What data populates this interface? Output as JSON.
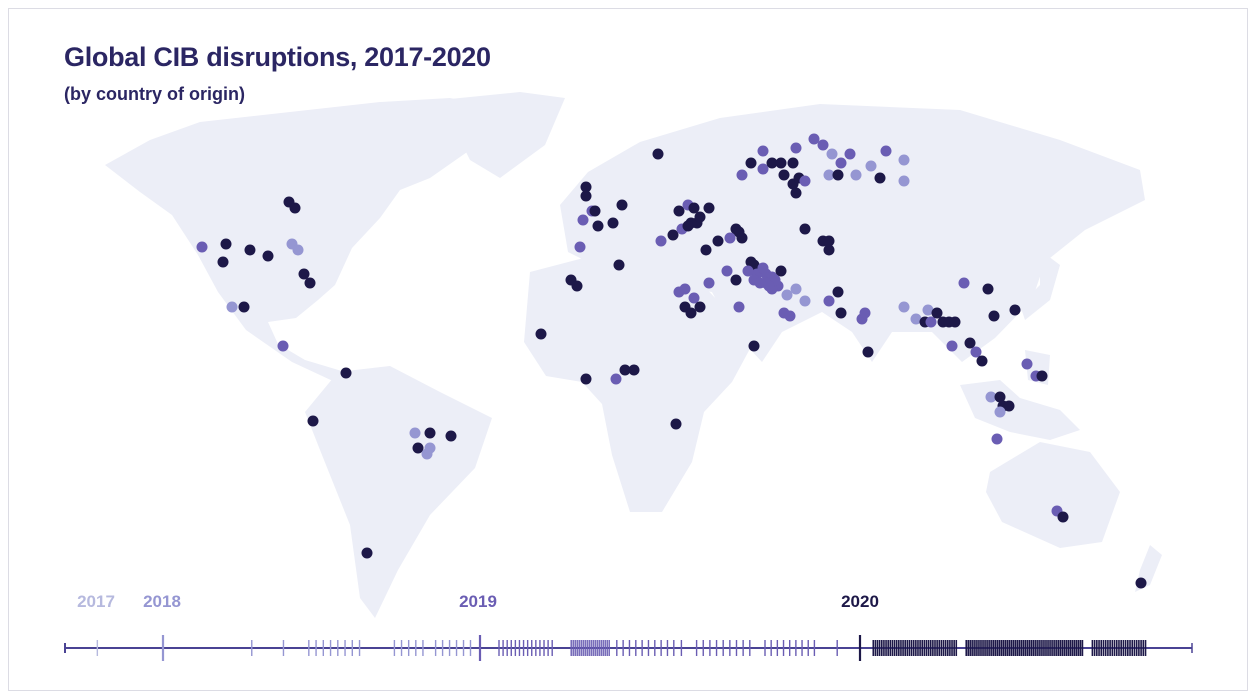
{
  "title": "Global CIB disruptions, 2017-2020",
  "subtitle": "(by country of origin)",
  "colors": {
    "2017": "#b6b9de",
    "2018": "#9596d2",
    "2019": "#6a5db3",
    "2020": "#1d1848",
    "land": "#eceef7",
    "axis": "#4a4394"
  },
  "year_labels": [
    "2017",
    "2018",
    "2019",
    "2020"
  ],
  "chart_data": {
    "type": "scatter",
    "title": "Global CIB disruptions, 2017-2020",
    "subtitle": "(by country of origin)",
    "dots_format": [
      "lon",
      "lat",
      "year"
    ],
    "dots": [
      [
        -136,
        51,
        2019
      ],
      [
        -128,
        52,
        2020
      ],
      [
        -129,
        46,
        2020
      ],
      [
        -120,
        50,
        2020
      ],
      [
        -114,
        48,
        2020
      ],
      [
        -106,
        52,
        2018
      ],
      [
        -104,
        50,
        2018
      ],
      [
        -107,
        66,
        2020
      ],
      [
        -105,
        64,
        2020
      ],
      [
        -102,
        42,
        2020
      ],
      [
        -100,
        39,
        2020
      ],
      [
        -126,
        31,
        2018
      ],
      [
        -122,
        31,
        2020
      ],
      [
        -109,
        18,
        2019
      ],
      [
        -88,
        9,
        2020
      ],
      [
        -99,
        -7,
        2020
      ],
      [
        -65,
        -11,
        2018
      ],
      [
        -60,
        -11,
        2020
      ],
      [
        -53,
        -12,
        2020
      ],
      [
        -64,
        -16,
        2020
      ],
      [
        -61,
        -18,
        2018
      ],
      [
        -60,
        -16,
        2018
      ],
      [
        -81,
        -51,
        2020
      ],
      [
        -23,
        22,
        2020
      ],
      [
        -8,
        7,
        2020
      ],
      [
        2,
        7,
        2019
      ],
      [
        5,
        10,
        2020
      ],
      [
        8,
        10,
        2020
      ],
      [
        22,
        -8,
        2020
      ],
      [
        -8,
        71,
        2020
      ],
      [
        -8,
        68,
        2020
      ],
      [
        -6,
        63,
        2019
      ],
      [
        -9,
        60,
        2019
      ],
      [
        -4,
        58,
        2020
      ],
      [
        -5,
        63,
        2020
      ],
      [
        1,
        59,
        2020
      ],
      [
        4,
        65,
        2020
      ],
      [
        -10,
        51,
        2019
      ],
      [
        -13,
        40,
        2020
      ],
      [
        -11,
        38,
        2020
      ],
      [
        3,
        45,
        2020
      ],
      [
        16,
        82,
        2020
      ],
      [
        17,
        53,
        2019
      ],
      [
        21,
        55,
        2020
      ],
      [
        23,
        63,
        2020
      ],
      [
        26,
        65,
        2019
      ],
      [
        28,
        64,
        2020
      ],
      [
        33,
        64,
        2020
      ],
      [
        27,
        59,
        2020
      ],
      [
        29,
        59,
        2020
      ],
      [
        30,
        61,
        2020
      ],
      [
        24,
        57,
        2019
      ],
      [
        26,
        58,
        2020
      ],
      [
        42,
        57,
        2020
      ],
      [
        43,
        56,
        2020
      ],
      [
        44,
        54,
        2020
      ],
      [
        40,
        54,
        2019
      ],
      [
        32,
        50,
        2020
      ],
      [
        36,
        53,
        2020
      ],
      [
        44,
        75,
        2019
      ],
      [
        47,
        79,
        2020
      ],
      [
        51,
        83,
        2019
      ],
      [
        51,
        77,
        2019
      ],
      [
        54,
        79,
        2020
      ],
      [
        57,
        79,
        2020
      ],
      [
        61,
        79,
        2020
      ],
      [
        58,
        75,
        2020
      ],
      [
        61,
        72,
        2020
      ],
      [
        62,
        69,
        2020
      ],
      [
        63,
        74,
        2020
      ],
      [
        65,
        73,
        2019
      ],
      [
        62,
        84,
        2019
      ],
      [
        68,
        87,
        2019
      ],
      [
        71,
        85,
        2019
      ],
      [
        74,
        82,
        2018
      ],
      [
        73,
        75,
        2018
      ],
      [
        76,
        75,
        2020
      ],
      [
        77,
        79,
        2019
      ],
      [
        80,
        82,
        2019
      ],
      [
        82,
        75,
        2018
      ],
      [
        87,
        78,
        2018
      ],
      [
        90,
        74,
        2020
      ],
      [
        92,
        83,
        2019
      ],
      [
        98,
        80,
        2018
      ],
      [
        98,
        73,
        2018
      ],
      [
        65,
        57,
        2020
      ],
      [
        71,
        53,
        2020
      ],
      [
        73,
        53,
        2020
      ],
      [
        73,
        50,
        2020
      ],
      [
        39,
        43,
        2019
      ],
      [
        42,
        40,
        2020
      ],
      [
        48,
        45,
        2020
      ],
      [
        47,
        46,
        2020
      ],
      [
        49,
        42,
        2019
      ],
      [
        52,
        42,
        2019
      ],
      [
        54,
        41,
        2019
      ],
      [
        57,
        43,
        2020
      ],
      [
        56,
        38,
        2019
      ],
      [
        54,
        37,
        2019
      ],
      [
        55,
        40,
        2019
      ],
      [
        46,
        43,
        2019
      ],
      [
        48,
        40,
        2019
      ],
      [
        50,
        39,
        2019
      ],
      [
        52,
        39,
        2019
      ],
      [
        51,
        44,
        2019
      ],
      [
        53,
        38,
        2019
      ],
      [
        33,
        39,
        2019
      ],
      [
        23,
        36,
        2019
      ],
      [
        25,
        37,
        2019
      ],
      [
        28,
        34,
        2019
      ],
      [
        25,
        31,
        2020
      ],
      [
        27,
        29,
        2020
      ],
      [
        30,
        31,
        2020
      ],
      [
        43,
        31,
        2019
      ],
      [
        59,
        35,
        2018
      ],
      [
        62,
        37,
        2018
      ],
      [
        65,
        33,
        2018
      ],
      [
        58,
        29,
        2019
      ],
      [
        60,
        28,
        2019
      ],
      [
        73,
        33,
        2019
      ],
      [
        76,
        36,
        2020
      ],
      [
        77,
        29,
        2020
      ],
      [
        84,
        27,
        2019
      ],
      [
        85,
        29,
        2019
      ],
      [
        48,
        18,
        2020
      ],
      [
        86,
        16,
        2020
      ],
      [
        98,
        31,
        2018
      ],
      [
        102,
        27,
        2018
      ],
      [
        106,
        30,
        2018
      ],
      [
        105,
        26,
        2020
      ],
      [
        107,
        26,
        2019
      ],
      [
        109,
        29,
        2020
      ],
      [
        111,
        26,
        2020
      ],
      [
        113,
        26,
        2020
      ],
      [
        115,
        26,
        2020
      ],
      [
        118,
        39,
        2019
      ],
      [
        126,
        37,
        2020
      ],
      [
        128,
        28,
        2020
      ],
      [
        135,
        30,
        2020
      ],
      [
        114,
        18,
        2019
      ],
      [
        120,
        19,
        2020
      ],
      [
        122,
        16,
        2019
      ],
      [
        124,
        13,
        2020
      ],
      [
        139,
        12,
        2019
      ],
      [
        142,
        8,
        2019
      ],
      [
        144,
        8,
        2020
      ],
      [
        127,
        1,
        2018
      ],
      [
        130,
        1,
        2020
      ],
      [
        131,
        -2,
        2020
      ],
      [
        133,
        -2,
        2020
      ],
      [
        130,
        -4,
        2018
      ],
      [
        129,
        -13,
        2019
      ],
      [
        149,
        -37,
        2019
      ],
      [
        151,
        -39,
        2020
      ],
      [
        177,
        -61,
        2020
      ]
    ],
    "timeline": {
      "range": [
        2017,
        2021
      ],
      "year_markers": [
        2018,
        2019,
        2020
      ],
      "tick_groups": [
        {
          "year": 2017,
          "from": 2017.33,
          "to": 2017.33,
          "count": 1
        },
        {
          "year": 2018,
          "from": 2018.28,
          "to": 2018.28,
          "count": 1
        },
        {
          "year": 2018,
          "from": 2018.38,
          "to": 2018.38,
          "count": 1
        },
        {
          "year": 2018,
          "from": 2018.46,
          "to": 2018.62,
          "count": 8
        },
        {
          "year": 2018,
          "from": 2018.73,
          "to": 2018.82,
          "count": 5
        },
        {
          "year": 2018,
          "from": 2018.86,
          "to": 2018.97,
          "count": 6
        },
        {
          "year": 2019,
          "from": 2019.05,
          "to": 2019.19,
          "count": 14
        },
        {
          "year": 2019,
          "from": 2019.24,
          "to": 2019.34,
          "count": 20
        },
        {
          "year": 2019,
          "from": 2019.36,
          "to": 2019.51,
          "count": 10
        },
        {
          "year": 2019,
          "from": 2019.53,
          "to": 2019.53,
          "count": 1
        },
        {
          "year": 2019,
          "from": 2019.57,
          "to": 2019.71,
          "count": 9
        },
        {
          "year": 2019,
          "from": 2019.75,
          "to": 2019.88,
          "count": 9
        },
        {
          "year": 2019,
          "from": 2019.94,
          "to": 2019.94,
          "count": 1
        },
        {
          "year": 2020,
          "from": 2020.04,
          "to": 2020.29,
          "count": 40
        },
        {
          "year": 2020,
          "from": 2020.32,
          "to": 2020.67,
          "count": 60
        },
        {
          "year": 2020,
          "from": 2020.7,
          "to": 2020.86,
          "count": 25
        }
      ]
    }
  }
}
